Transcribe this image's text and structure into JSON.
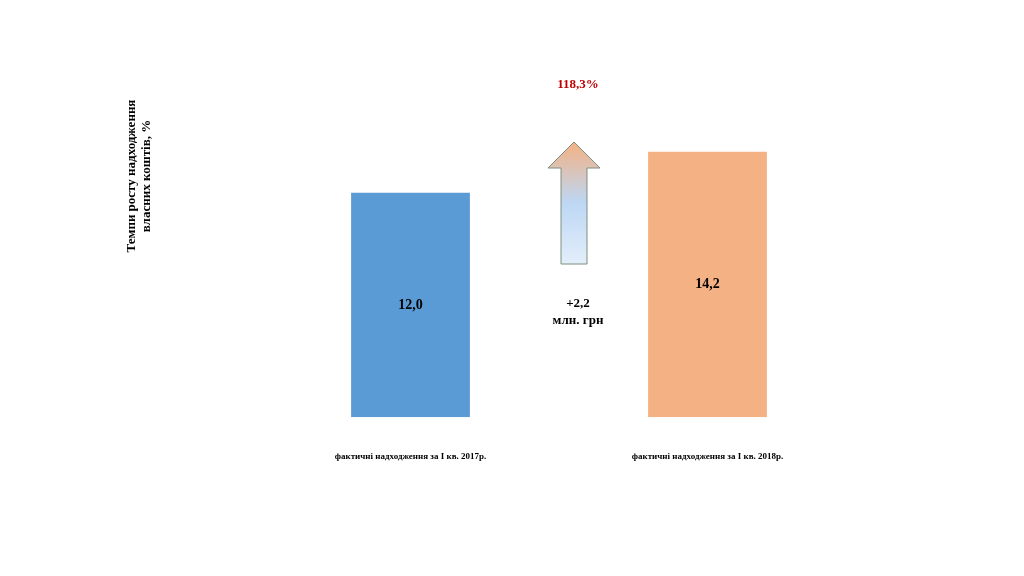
{
  "chart_data": {
    "type": "bar",
    "categories": [
      "фактичні надходження за I кв. 2017р.",
      "фактичні надходження за I кв. 2018р."
    ],
    "values": [
      12.0,
      14.2
    ],
    "colors": [
      "#5b9bd5",
      "#f4b183"
    ],
    "value_labels": [
      "12,0",
      "14,2"
    ],
    "annotations": [
      "Темпи росту надходження власних коштів, %",
      "118,3%",
      "+2,2 млн. грн"
    ]
  }
}
